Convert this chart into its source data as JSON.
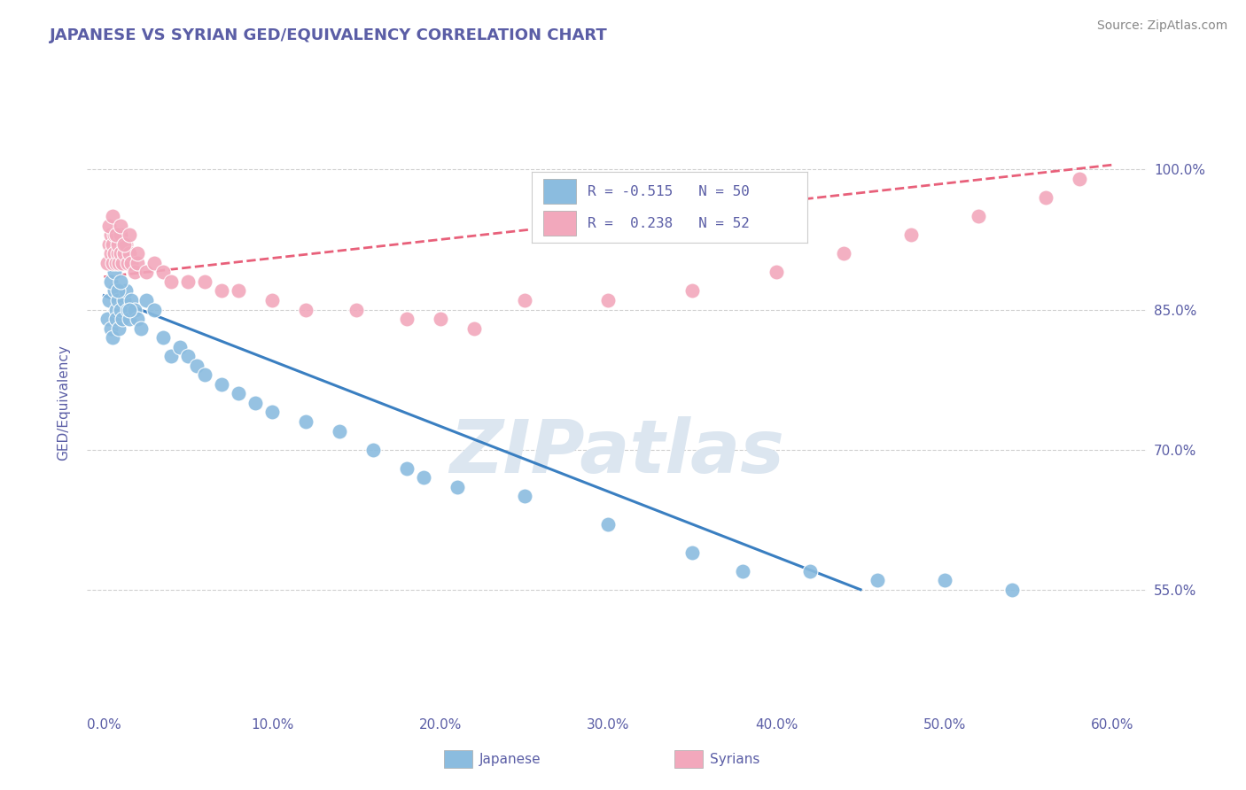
{
  "title": "JAPANESE VS SYRIAN GED/EQUIVALENCY CORRELATION CHART",
  "source": "Source: ZipAtlas.com",
  "ylabel": "GED/Equivalency",
  "x_tick_labels": [
    "0.0%",
    "10.0%",
    "20.0%",
    "30.0%",
    "40.0%",
    "50.0%",
    "60.0%"
  ],
  "x_tick_vals": [
    0.0,
    10.0,
    20.0,
    30.0,
    40.0,
    50.0,
    60.0
  ],
  "y_tick_labels": [
    "55.0%",
    "70.0%",
    "85.0%",
    "100.0%"
  ],
  "y_tick_vals": [
    55.0,
    70.0,
    85.0,
    100.0
  ],
  "xlim": [
    -1.0,
    62.0
  ],
  "ylim": [
    42.0,
    108.0
  ],
  "japanese_color": "#8bbcdf",
  "syrian_color": "#f2a8bc",
  "trendline_japanese_color": "#3a7fc1",
  "trendline_syrian_color": "#e8607a",
  "trendline_syrian_dash": true,
  "background_color": "#ffffff",
  "grid_color": "#c8c8c8",
  "title_color": "#5b5ea6",
  "tick_label_color": "#5b5ea6",
  "watermark_color": "#dce6f0",
  "watermark_text": "ZIPatlas",
  "legend_label1": "R = -0.515   N = 50",
  "legend_label2": "R =  0.238   N = 52",
  "legend_color1": "#8bbcdf",
  "legend_color2": "#f2a8bc",
  "bottom_legend_japanese": "Japanese",
  "bottom_legend_syrians": "Syrians",
  "japanese_x": [
    0.2,
    0.3,
    0.4,
    0.5,
    0.6,
    0.7,
    0.7,
    0.8,
    0.9,
    1.0,
    1.1,
    1.2,
    1.3,
    1.4,
    1.5,
    1.6,
    1.8,
    2.0,
    2.2,
    2.5,
    3.0,
    3.5,
    4.0,
    4.5,
    5.0,
    5.5,
    6.0,
    7.0,
    8.0,
    9.0,
    10.0,
    12.0,
    14.0,
    16.0,
    18.0,
    19.0,
    21.0,
    25.0,
    30.0,
    35.0,
    38.0,
    42.0,
    46.0,
    50.0,
    54.0,
    0.4,
    0.6,
    0.8,
    1.0,
    1.5
  ],
  "japanese_y": [
    84.0,
    86.0,
    83.0,
    82.0,
    87.0,
    85.0,
    84.0,
    86.0,
    83.0,
    85.0,
    84.0,
    86.0,
    87.0,
    85.0,
    84.0,
    86.0,
    85.0,
    84.0,
    83.0,
    86.0,
    85.0,
    82.0,
    80.0,
    81.0,
    80.0,
    79.0,
    78.0,
    77.0,
    76.0,
    75.0,
    74.0,
    73.0,
    72.0,
    70.0,
    68.0,
    67.0,
    66.0,
    65.0,
    62.0,
    59.0,
    57.0,
    57.0,
    56.0,
    56.0,
    55.0,
    88.0,
    89.0,
    87.0,
    88.0,
    85.0
  ],
  "syrian_x": [
    0.2,
    0.3,
    0.4,
    0.4,
    0.5,
    0.5,
    0.6,
    0.6,
    0.7,
    0.8,
    0.8,
    0.9,
    1.0,
    1.0,
    1.1,
    1.2,
    1.3,
    1.4,
    1.5,
    1.6,
    1.8,
    2.0,
    2.5,
    3.0,
    3.5,
    4.0,
    5.0,
    6.0,
    7.0,
    8.0,
    10.0,
    12.0,
    15.0,
    18.0,
    20.0,
    22.0,
    25.0,
    30.0,
    35.0,
    40.0,
    44.0,
    48.0,
    52.0,
    56.0,
    58.0,
    0.3,
    0.5,
    0.7,
    1.0,
    1.2,
    1.5,
    2.0
  ],
  "syrian_y": [
    90.0,
    92.0,
    91.0,
    93.0,
    90.0,
    92.0,
    91.0,
    93.0,
    90.0,
    91.0,
    92.0,
    90.0,
    91.0,
    93.0,
    90.0,
    91.0,
    92.0,
    90.0,
    91.0,
    90.0,
    89.0,
    90.0,
    89.0,
    90.0,
    89.0,
    88.0,
    88.0,
    88.0,
    87.0,
    87.0,
    86.0,
    85.0,
    85.0,
    84.0,
    84.0,
    83.0,
    86.0,
    86.0,
    87.0,
    89.0,
    91.0,
    93.0,
    95.0,
    97.0,
    99.0,
    94.0,
    95.0,
    93.0,
    94.0,
    92.0,
    93.0,
    91.0
  ],
  "trendline_j_x0": 0.0,
  "trendline_j_y0": 86.5,
  "trendline_j_x1": 45.0,
  "trendline_j_y1": 55.0,
  "trendline_s_x0": 0.0,
  "trendline_s_y0": 88.5,
  "trendline_s_x1": 60.0,
  "trendline_s_y1": 100.5
}
